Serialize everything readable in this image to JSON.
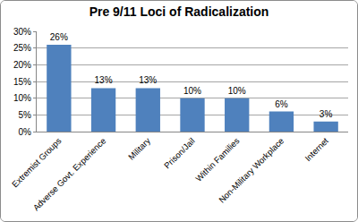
{
  "chart_data": {
    "type": "bar",
    "title": "Pre 9/11 Loci of Radicalization",
    "categories": [
      "Extremist Groups",
      "Adverse Govt. Experience",
      "Military",
      "Prison/Jail",
      "Within Families",
      "Non-Military Workplace",
      "Internet"
    ],
    "values": [
      26,
      13,
      13,
      10,
      10,
      6,
      3
    ],
    "value_labels": [
      "26%",
      "13%",
      "13%",
      "10%",
      "10%",
      "6%",
      "3%"
    ],
    "color": "#4f81bd",
    "ylim": [
      0,
      30
    ],
    "yticks": [
      {
        "value": 0,
        "label": "0%"
      },
      {
        "value": 5,
        "label": "5%"
      },
      {
        "value": 10,
        "label": "10%"
      },
      {
        "value": 15,
        "label": "15%"
      },
      {
        "value": 20,
        "label": "20%"
      },
      {
        "value": 25,
        "label": "25%"
      },
      {
        "value": 30,
        "label": "30%"
      }
    ],
    "grid": true,
    "data_labels": true
  }
}
